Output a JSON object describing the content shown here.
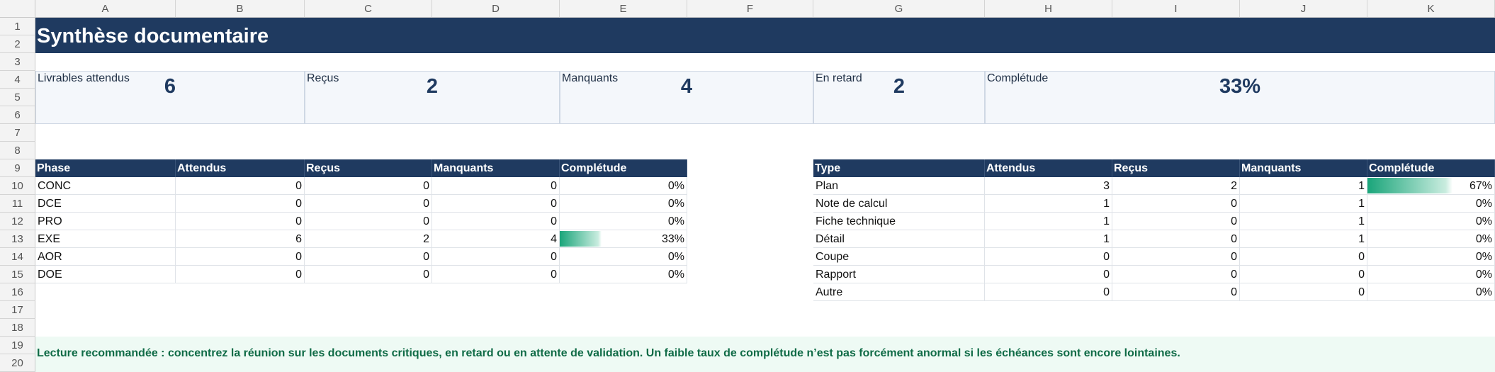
{
  "columns": [
    "A",
    "B",
    "C",
    "D",
    "E",
    "F",
    "G",
    "H",
    "I",
    "J",
    "K"
  ],
  "rows": [
    "1",
    "2",
    "3",
    "4",
    "5",
    "6",
    "7",
    "8",
    "9",
    "10",
    "11",
    "12",
    "13",
    "14",
    "15",
    "16",
    "17",
    "18",
    "19",
    "20"
  ],
  "title": "Synthèse documentaire",
  "kpis": [
    {
      "label": "Livrables attendus",
      "value": "6"
    },
    {
      "label": "Reçus",
      "value": "2"
    },
    {
      "label": "Manquants",
      "value": "4"
    },
    {
      "label": "En retard",
      "value": "2"
    },
    {
      "label": "Complétude",
      "value": "33%"
    }
  ],
  "phase_table": {
    "headers": [
      "Phase",
      "Attendus",
      "Reçus",
      "Manquants",
      "Complétude"
    ],
    "rows": [
      {
        "name": "CONC",
        "attendus": "0",
        "recus": "0",
        "manquants": "0",
        "completude": "0%",
        "ratio": 0
      },
      {
        "name": "DCE",
        "attendus": "0",
        "recus": "0",
        "manquants": "0",
        "completude": "0%",
        "ratio": 0
      },
      {
        "name": "PRO",
        "attendus": "0",
        "recus": "0",
        "manquants": "0",
        "completude": "0%",
        "ratio": 0
      },
      {
        "name": "EXE",
        "attendus": "6",
        "recus": "2",
        "manquants": "4",
        "completude": "33%",
        "ratio": 0.33
      },
      {
        "name": "AOR",
        "attendus": "0",
        "recus": "0",
        "manquants": "0",
        "completude": "0%",
        "ratio": 0
      },
      {
        "name": "DOE",
        "attendus": "0",
        "recus": "0",
        "manquants": "0",
        "completude": "0%",
        "ratio": 0
      }
    ]
  },
  "type_table": {
    "headers": [
      "Type",
      "Attendus",
      "Reçus",
      "Manquants",
      "Complétude"
    ],
    "rows": [
      {
        "name": "Plan",
        "attendus": "3",
        "recus": "2",
        "manquants": "1",
        "completude": "67%",
        "ratio": 0.67
      },
      {
        "name": "Note de calcul",
        "attendus": "1",
        "recus": "0",
        "manquants": "1",
        "completude": "0%",
        "ratio": 0
      },
      {
        "name": "Fiche technique",
        "attendus": "1",
        "recus": "0",
        "manquants": "1",
        "completude": "0%",
        "ratio": 0
      },
      {
        "name": "Détail",
        "attendus": "1",
        "recus": "0",
        "manquants": "1",
        "completude": "0%",
        "ratio": 0
      },
      {
        "name": "Coupe",
        "attendus": "0",
        "recus": "0",
        "manquants": "0",
        "completude": "0%",
        "ratio": 0
      },
      {
        "name": "Rapport",
        "attendus": "0",
        "recus": "0",
        "manquants": "0",
        "completude": "0%",
        "ratio": 0
      },
      {
        "name": "Autre",
        "attendus": "0",
        "recus": "0",
        "manquants": "0",
        "completude": "0%",
        "ratio": 0
      }
    ]
  },
  "note": "Lecture recommandée : concentrez la réunion sur les documents critiques, en retard ou en attente de validation. Un faible taux de complétude n’est pas forcément anormal si les échéances sont encore lointaines.",
  "colors": {
    "header": "#1f3a60",
    "bar": "#1aa57a",
    "note_text": "#0f6b46",
    "note_bg": "#eefaf4"
  }
}
